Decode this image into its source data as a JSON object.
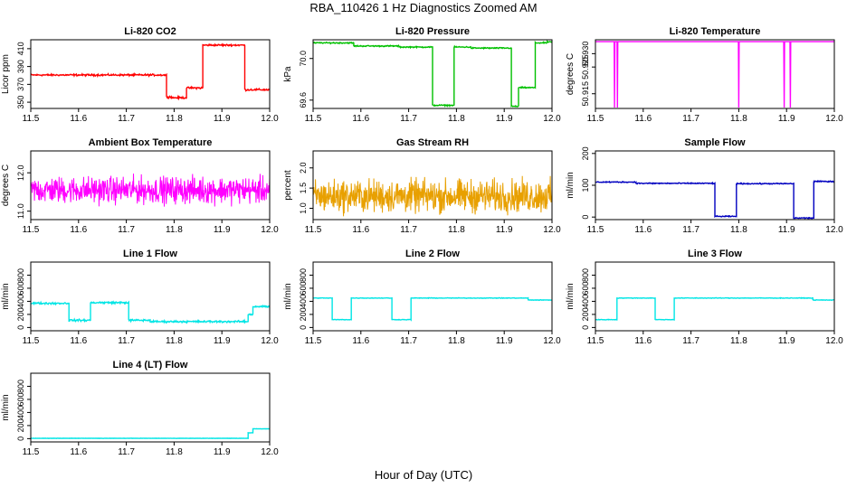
{
  "figure": {
    "title": "RBA_110426  1 Hz Diagnostics Zoomed AM",
    "xlabel": "Hour of Day (UTC)"
  },
  "chart_data": [
    {
      "type": "line",
      "title": "Li-820 CO2",
      "ylabel": "Licor ppm",
      "color": "#ff0000",
      "xlim": [
        11.5,
        12.0
      ],
      "ylim": [
        343,
        420
      ],
      "xticks": [
        11.5,
        11.6,
        11.7,
        11.8,
        11.9,
        12.0
      ],
      "xticklabels": [
        "11.5",
        "11.6",
        "11.7",
        "11.8",
        "11.9",
        "12.0"
      ],
      "yticks": [
        350,
        370,
        390,
        410
      ],
      "yticklabels": [
        "350",
        "370",
        "390",
        "410"
      ],
      "noise": 0.7,
      "segments": [
        [
          11.5,
          11.784,
          380.5
        ],
        [
          11.784,
          11.794,
          356
        ],
        [
          11.794,
          11.826,
          355
        ],
        [
          11.826,
          11.86,
          366
        ],
        [
          11.86,
          11.948,
          414
        ],
        [
          11.948,
          12.0,
          364
        ]
      ]
    },
    {
      "type": "line",
      "title": "Li-820 Pressure",
      "ylabel": "kPa",
      "color": "#00c000",
      "xlim": [
        11.5,
        12.0
      ],
      "ylim": [
        69.52,
        70.18
      ],
      "xticks": [
        11.5,
        11.6,
        11.7,
        11.8,
        11.9,
        12.0
      ],
      "xticklabels": [
        "11.5",
        "11.6",
        "11.7",
        "11.8",
        "11.9",
        "12.0"
      ],
      "yticks": [
        69.6,
        70.0
      ],
      "yticklabels": [
        "69.6",
        "70.0"
      ],
      "noise": 0.004,
      "segments": [
        [
          11.5,
          11.585,
          70.15
        ],
        [
          11.585,
          11.68,
          70.12
        ],
        [
          11.68,
          11.75,
          70.11
        ],
        [
          11.75,
          11.795,
          69.55
        ],
        [
          11.795,
          11.83,
          70.11
        ],
        [
          11.83,
          11.915,
          70.1
        ],
        [
          11.915,
          11.93,
          69.54
        ],
        [
          11.93,
          11.965,
          69.72
        ],
        [
          11.965,
          11.99,
          70.15
        ],
        [
          11.99,
          12.0,
          70.16
        ]
      ]
    },
    {
      "type": "line",
      "title": "Li-820 Temperature",
      "ylabel": "degrees C",
      "color": "#ff00ff",
      "xlim": [
        11.5,
        12.0
      ],
      "ylim": [
        50.9095,
        50.9352
      ],
      "xticks": [
        11.5,
        11.6,
        11.7,
        11.8,
        11.9,
        12.0
      ],
      "xticklabels": [
        "11.5",
        "11.6",
        "11.7",
        "11.8",
        "11.9",
        "12.0"
      ],
      "yticks": [
        50.915,
        50.925,
        50.93
      ],
      "yticklabels": [
        "50.915",
        "50.925",
        "50.930"
      ],
      "baseline": 50.9345,
      "spikes": [
        [
          11.54,
          50.9098
        ],
        [
          11.546,
          50.9098
        ],
        [
          11.8,
          50.9098
        ],
        [
          11.895,
          50.9098
        ],
        [
          11.908,
          50.9098
        ]
      ]
    },
    {
      "type": "line",
      "title": "Ambient Box Temperature",
      "ylabel": "degrees C",
      "color": "#ff00ff",
      "xlim": [
        11.5,
        12.0
      ],
      "ylim": [
        10.78,
        12.57
      ],
      "xticks": [
        11.5,
        11.6,
        11.7,
        11.8,
        11.9,
        12.0
      ],
      "xticklabels": [
        "11.5",
        "11.6",
        "11.7",
        "11.8",
        "11.9",
        "12.0"
      ],
      "yticks": [
        11.0,
        12.0
      ],
      "yticklabels": [
        "11.0",
        "12.0"
      ],
      "noise_mean": 11.55,
      "noise_sd": 0.24,
      "noise_range": [
        10.8,
        12.55
      ]
    },
    {
      "type": "line",
      "title": "Gas Stream RH",
      "ylabel": "percent",
      "color": "#e8a000",
      "xlim": [
        11.5,
        12.0
      ],
      "ylim": [
        0.72,
        2.42
      ],
      "xticks": [
        11.5,
        11.6,
        11.7,
        11.8,
        11.9,
        12.0
      ],
      "xticklabels": [
        "11.5",
        "11.6",
        "11.7",
        "11.8",
        "11.9",
        "12.0"
      ],
      "yticks": [
        1.0,
        1.5,
        2.0
      ],
      "yticklabels": [
        "1.0",
        "1.5",
        "2.0"
      ],
      "noise_mean": 1.3,
      "noise_sd": 0.28,
      "noise_range": [
        0.75,
        2.3
      ]
    },
    {
      "type": "line",
      "title": "Sample Flow",
      "ylabel": "ml/min",
      "color": "#0000c0",
      "xlim": [
        11.5,
        12.0
      ],
      "ylim": [
        -8,
        208
      ],
      "xticks": [
        11.5,
        11.6,
        11.7,
        11.8,
        11.9,
        12.0
      ],
      "xticklabels": [
        "11.5",
        "11.6",
        "11.7",
        "11.8",
        "11.9",
        "12.0"
      ],
      "yticks": [
        0,
        100,
        200
      ],
      "yticklabels": [
        "0",
        "100",
        "200"
      ],
      "noise": 1.2,
      "segments": [
        [
          11.5,
          11.585,
          110
        ],
        [
          11.585,
          11.75,
          106
        ],
        [
          11.75,
          11.795,
          2
        ],
        [
          11.795,
          11.915,
          105
        ],
        [
          11.915,
          11.957,
          -3
        ],
        [
          11.957,
          12.0,
          112
        ]
      ]
    },
    {
      "type": "line",
      "title": "Line 1 Flow",
      "ylabel": "ml/min",
      "color": "#00e5e5",
      "xlim": [
        11.5,
        12.0
      ],
      "ylim": [
        -50,
        1000
      ],
      "xticks": [
        11.5,
        11.6,
        11.7,
        11.8,
        11.9,
        12.0
      ],
      "xticklabels": [
        "11.5",
        "11.6",
        "11.7",
        "11.8",
        "11.9",
        "12.0"
      ],
      "yticks": [
        0,
        200,
        400,
        600,
        800
      ],
      "yticklabels": [
        "0",
        "200",
        "400",
        "600",
        "800"
      ],
      "noise": 10,
      "segments": [
        [
          11.5,
          11.58,
          370
        ],
        [
          11.58,
          11.625,
          110
        ],
        [
          11.625,
          11.705,
          380
        ],
        [
          11.705,
          11.75,
          110
        ],
        [
          11.75,
          11.955,
          90
        ],
        [
          11.955,
          11.965,
          200
        ],
        [
          11.965,
          12.0,
          320
        ]
      ]
    },
    {
      "type": "line",
      "title": "Line 2 Flow",
      "ylabel": "ml/min",
      "color": "#00e5e5",
      "xlim": [
        11.5,
        12.0
      ],
      "ylim": [
        -50,
        1000
      ],
      "xticks": [
        11.5,
        11.6,
        11.7,
        11.8,
        11.9,
        12.0
      ],
      "xticklabels": [
        "11.5",
        "11.6",
        "11.7",
        "11.8",
        "11.9",
        "12.0"
      ],
      "yticks": [
        0,
        200,
        400,
        600,
        800
      ],
      "yticklabels": [
        "0",
        "200",
        "400",
        "600",
        "800"
      ],
      "noise": 3,
      "segments": [
        [
          11.5,
          11.54,
          450
        ],
        [
          11.54,
          11.58,
          120
        ],
        [
          11.58,
          11.665,
          450
        ],
        [
          11.665,
          11.705,
          120
        ],
        [
          11.705,
          11.95,
          450
        ],
        [
          11.95,
          12.0,
          420
        ]
      ]
    },
    {
      "type": "line",
      "title": "Line 3 Flow",
      "ylabel": "ml/min",
      "color": "#00e5e5",
      "xlim": [
        11.5,
        12.0
      ],
      "ylim": [
        -50,
        1000
      ],
      "xticks": [
        11.5,
        11.6,
        11.7,
        11.8,
        11.9,
        12.0
      ],
      "xticklabels": [
        "11.5",
        "11.6",
        "11.7",
        "11.8",
        "11.9",
        "12.0"
      ],
      "yticks": [
        0,
        200,
        400,
        600,
        800
      ],
      "yticklabels": [
        "0",
        "200",
        "400",
        "600",
        "800"
      ],
      "noise": 3,
      "segments": [
        [
          11.5,
          11.545,
          120
        ],
        [
          11.545,
          11.625,
          450
        ],
        [
          11.625,
          11.665,
          120
        ],
        [
          11.665,
          11.955,
          450
        ],
        [
          11.955,
          12.0,
          420
        ]
      ]
    },
    {
      "type": "line",
      "title": "Line 4 (LT) Flow",
      "ylabel": "ml/min",
      "color": "#00e5e5",
      "xlim": [
        11.5,
        12.0
      ],
      "ylim": [
        -50,
        1000
      ],
      "xticks": [
        11.5,
        11.6,
        11.7,
        11.8,
        11.9,
        12.0
      ],
      "xticklabels": [
        "11.5",
        "11.6",
        "11.7",
        "11.8",
        "11.9",
        "12.0"
      ],
      "yticks": [
        0,
        200,
        400,
        600,
        800
      ],
      "yticklabels": [
        "0",
        "200",
        "400",
        "600",
        "800"
      ],
      "noise": 1.5,
      "segments": [
        [
          11.5,
          11.955,
          5
        ],
        [
          11.955,
          11.965,
          90
        ],
        [
          11.965,
          12.0,
          150
        ]
      ]
    }
  ]
}
